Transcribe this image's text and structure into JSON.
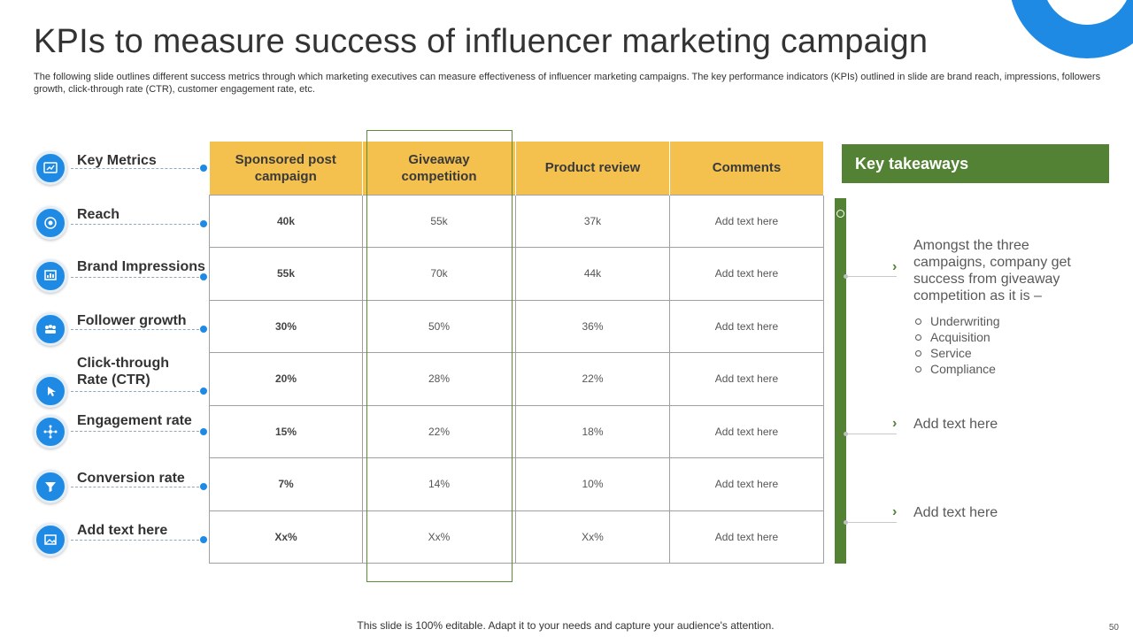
{
  "slide": {
    "title": "KPIs to measure success of influencer marketing campaign",
    "subtitle": "The following slide outlines different success metrics through which marketing executives can measure effectiveness of influencer marketing campaigns. The key performance indicators (KPIs) outlined in slide are brand reach, impressions, followers growth, click-through rate (CTR), customer engagement rate, etc.",
    "footer": "This slide is 100% editable. Adapt it to your needs and capture your audience's attention.",
    "page_number": "50",
    "accent_colors": {
      "blue": "#1f8ae3",
      "green": "#548235",
      "yellow": "#f4c04e"
    }
  },
  "metrics": [
    {
      "label": "Key Metrics",
      "icon": "dashboard-icon"
    },
    {
      "label": "Reach",
      "icon": "target-icon"
    },
    {
      "label": "Brand Impressions",
      "icon": "chart-board-icon"
    },
    {
      "label": "Follower growth",
      "icon": "people-icon"
    },
    {
      "label": "Click-through Rate (CTR)",
      "icon": "click-icon"
    },
    {
      "label": "Engagement rate",
      "icon": "network-icon"
    },
    {
      "label": "Conversion rate",
      "icon": "funnel-icon"
    },
    {
      "label": "Add text here",
      "icon": "image-icon"
    }
  ],
  "table": {
    "headers": [
      "Sponsored post campaign",
      "Giveaway competition",
      "Product review",
      "Comments"
    ],
    "rows": [
      [
        "40k",
        "55k",
        "37k",
        "Add text here"
      ],
      [
        "55k",
        "70k",
        "44k",
        "Add text here"
      ],
      [
        "30%",
        "50%",
        "36%",
        "Add text here"
      ],
      [
        "20%",
        "28%",
        "22%",
        "Add text here"
      ],
      [
        "15%",
        "22%",
        "18%",
        "Add text here"
      ],
      [
        "7%",
        "14%",
        "10%",
        "Add text here"
      ],
      [
        "Xx%",
        "Xx%",
        "Xx%",
        "Add text here"
      ]
    ]
  },
  "takeaways": {
    "header": "Key takeaways",
    "item1": "Amongst the three campaigns, company get success from giveaway competition as it is –",
    "bullets": [
      "Underwriting",
      "Acquisition",
      "Service",
      "Compliance"
    ],
    "item2": "Add text here",
    "item3": "Add text here"
  }
}
